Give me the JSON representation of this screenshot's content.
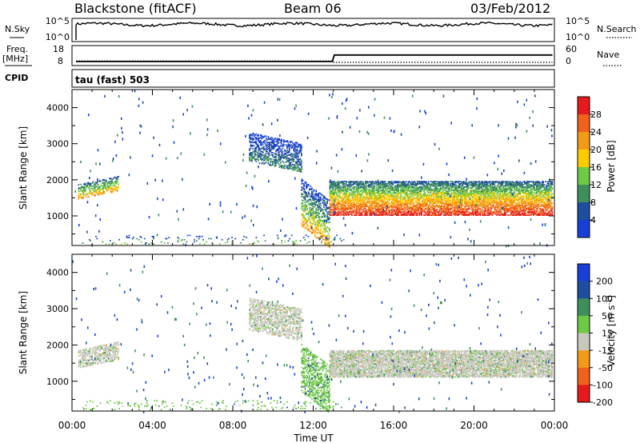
{
  "header": {
    "station": "Blackstone (fitACF)",
    "beam": "Beam 06",
    "date": "03/Feb/2012"
  },
  "noise_panel": {
    "left_label": "N.Sky",
    "right_label": "N.Search",
    "left_ticks": [
      "10^5",
      "10^0"
    ],
    "right_ticks": [
      "10^5",
      "10^0"
    ]
  },
  "freq_panel": {
    "left_label_1": "Freq.",
    "left_label_2": "[MHz]",
    "right_label": "Nave",
    "left_ticks": [
      "18",
      "8"
    ],
    "right_ticks": [
      "60",
      "0"
    ],
    "freq_mhz": [
      {
        "t": 0.2,
        "v": 9.8
      },
      {
        "t": 12.95,
        "v": 9.8
      },
      {
        "t": 13.05,
        "v": 14.6
      },
      {
        "t": 23.9,
        "v": 14.6
      }
    ],
    "nave": [
      {
        "t": 0.2,
        "v": 13
      },
      {
        "t": 12.95,
        "v": 13
      },
      {
        "t": 13.05,
        "v": 7
      },
      {
        "t": 23.9,
        "v": 7
      }
    ]
  },
  "cpid": {
    "label": "CPID",
    "mode_text": "tau (fast) 503"
  },
  "x_axis": {
    "label": "Time UT",
    "ticks": [
      "00:00",
      "04:00",
      "08:00",
      "12:00",
      "16:00",
      "20:00",
      "00:00"
    ],
    "range_hours": [
      0,
      24
    ]
  },
  "chart_data": [
    {
      "type": "heatmap",
      "name": "power",
      "ylabel": "Slant Range [km]",
      "ylim": [
        180,
        4500
      ],
      "yticks": [
        "1000",
        "2000",
        "3000",
        "4000"
      ],
      "colorbar_label": "Power [dB]",
      "colorbar_ticks": [
        "4",
        "8",
        "12",
        "16",
        "20",
        "24",
        "28"
      ],
      "colorbar_colors": [
        "#1a3fd8",
        "#1f4da0",
        "#3f8f5c",
        "#6ec944",
        "#ffcc00",
        "#f39a1a",
        "#f0621c",
        "#e41a1c"
      ],
      "features": [
        {
          "t0": 0.3,
          "t1": 2.3,
          "r0": 1450,
          "r1": 1850,
          "slope": 230,
          "level_lo": 1,
          "level_hi": 5,
          "density": 0.55
        },
        {
          "t0": 8.8,
          "t1": 11.4,
          "r0": 2500,
          "r1": 3300,
          "slope": -300,
          "level_lo": 0,
          "level_hi": 2,
          "density": 0.5
        },
        {
          "t0": 11.4,
          "t1": 12.8,
          "r0": 700,
          "r1": 2000,
          "slope": -600,
          "level_lo": 0,
          "level_hi": 5,
          "density": 0.45
        },
        {
          "t0": 12.8,
          "t1": 23.9,
          "r0": 1000,
          "r1": 1950,
          "slope": 0,
          "level_lo": 1,
          "level_hi": 7,
          "density": 0.7
        },
        {
          "t0": 0.5,
          "t1": 13.5,
          "r0": 200,
          "r1": 450,
          "slope": 0,
          "level_lo": 0,
          "level_hi": 3,
          "density": 0.06
        }
      ]
    },
    {
      "type": "heatmap",
      "name": "velocity",
      "ylabel": "Slant Range [km]",
      "ylim": [
        180,
        4500
      ],
      "yticks": [
        "1000",
        "2000",
        "3000",
        "4000"
      ],
      "colorbar_label_main": "Velocity [m s",
      "colorbar_label_sup": "-1",
      "colorbar_label_end": "]",
      "colorbar_ticks": [
        "200",
        "100",
        "50",
        "15",
        "-15",
        "-50",
        "-100",
        "-200"
      ],
      "colorbar_colors": [
        "#1a3fd8",
        "#1f4da0",
        "#3f8f5c",
        "#6ec944",
        "#c8c8be",
        "#f39a1a",
        "#f0621c",
        "#e41a1c"
      ],
      "features": [
        {
          "t0": 0.3,
          "t1": 2.3,
          "r0": 1350,
          "r1": 1850,
          "slope": 230,
          "level_center": 4,
          "density": 0.55
        },
        {
          "t0": 8.8,
          "t1": 11.4,
          "r0": 2400,
          "r1": 3300,
          "slope": -300,
          "level_center": 4,
          "density": 0.5
        },
        {
          "t0": 11.4,
          "t1": 12.8,
          "r0": 700,
          "r1": 2000,
          "slope": -600,
          "level_center": 3,
          "density": 0.45
        },
        {
          "t0": 12.8,
          "t1": 23.9,
          "r0": 1100,
          "r1": 1850,
          "slope": 0,
          "level_center": 4,
          "density": 0.75
        },
        {
          "t0": 0.5,
          "t1": 13.5,
          "r0": 200,
          "r1": 450,
          "slope": 0,
          "level_center": 3,
          "density": 0.07
        }
      ]
    }
  ]
}
